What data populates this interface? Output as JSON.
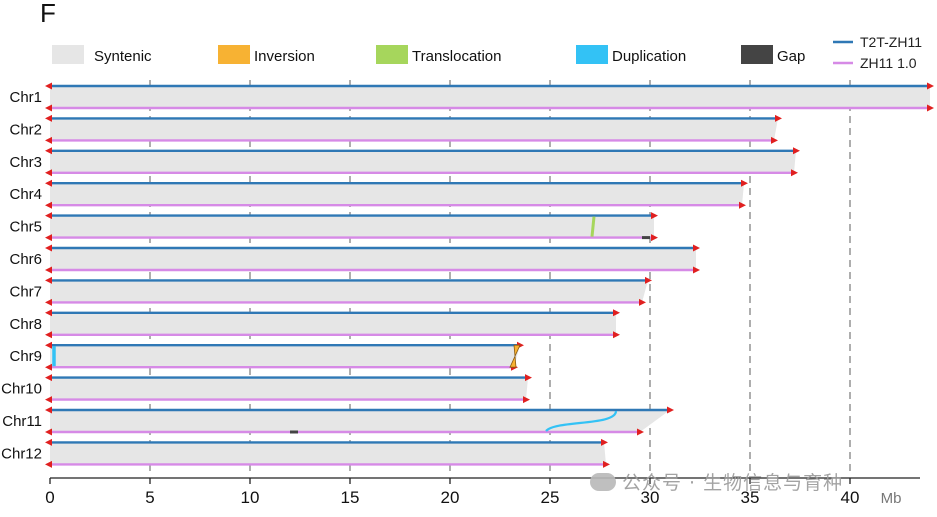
{
  "panel_label": "F",
  "watermark_text": "公众号 · 生物信息与育种",
  "colors": {
    "syntenic": "#e6e6e6",
    "inversion": "#f7b233",
    "translocation": "#a6d65c",
    "duplication": "#33c2f5",
    "gap": "#444444",
    "t2t": "#2f78b5",
    "zh11": "#d68ae6",
    "end_marker": "#e02020",
    "grid": "#9a9a9a"
  },
  "chart_data": {
    "type": "synteny",
    "x_unit": "Mb",
    "xlim": [
      0,
      44
    ],
    "xticks": [
      0,
      5,
      10,
      15,
      20,
      25,
      30,
      35,
      40
    ],
    "grid": "dashed-vertical",
    "legend": {
      "placement": "top",
      "items": [
        {
          "key": "syntenic",
          "label": "Syntenic"
        },
        {
          "key": "inversion",
          "label": "Inversion"
        },
        {
          "key": "translocation",
          "label": "Translocation"
        },
        {
          "key": "duplication",
          "label": "Duplication"
        },
        {
          "key": "gap",
          "label": "Gap"
        }
      ],
      "series": [
        {
          "key": "t2t",
          "label": "T2T-ZH11"
        },
        {
          "key": "zh11",
          "label": "ZH11  1.0"
        }
      ]
    },
    "chromosomes": [
      {
        "name": "Chr1",
        "t2t_len": 44.0,
        "zh11_len": 44.0
      },
      {
        "name": "Chr2",
        "t2t_len": 36.4,
        "zh11_len": 36.2
      },
      {
        "name": "Chr3",
        "t2t_len": 37.3,
        "zh11_len": 37.2
      },
      {
        "name": "Chr4",
        "t2t_len": 34.7,
        "zh11_len": 34.6
      },
      {
        "name": "Chr5",
        "t2t_len": 30.2,
        "zh11_len": 30.2
      },
      {
        "name": "Chr6",
        "t2t_len": 32.3,
        "zh11_len": 32.3
      },
      {
        "name": "Chr7",
        "t2t_len": 29.9,
        "zh11_len": 29.6
      },
      {
        "name": "Chr8",
        "t2t_len": 28.3,
        "zh11_len": 28.3
      },
      {
        "name": "Chr9",
        "t2t_len": 23.5,
        "zh11_len": 23.2
      },
      {
        "name": "Chr10",
        "t2t_len": 23.9,
        "zh11_len": 23.8
      },
      {
        "name": "Chr11",
        "t2t_len": 31.0,
        "zh11_len": 29.5
      },
      {
        "name": "Chr12",
        "t2t_len": 27.7,
        "zh11_len": 27.8
      }
    ],
    "features": [
      {
        "type": "translocation",
        "chr": "Chr5",
        "t2t_pos": 27.2,
        "zh11_pos": 27.1
      },
      {
        "type": "gap",
        "chr": "Chr5",
        "zh11_start": 29.6,
        "zh11_end": 30.0
      },
      {
        "type": "duplication",
        "chr": "Chr9",
        "t2t_pos": 0.1,
        "zh11_pos": 0.1
      },
      {
        "type": "inversion",
        "chr": "Chr9",
        "t2t_start": 23.2,
        "t2t_end": 23.5,
        "zh11_start": 23.0,
        "zh11_end": 23.3
      },
      {
        "type": "duplication",
        "chr": "Chr11",
        "t2t_pos": 28.3,
        "zh11_pos": 24.8
      },
      {
        "type": "gap",
        "chr": "Chr11",
        "zh11_start": 12.0,
        "zh11_end": 12.4
      }
    ]
  }
}
